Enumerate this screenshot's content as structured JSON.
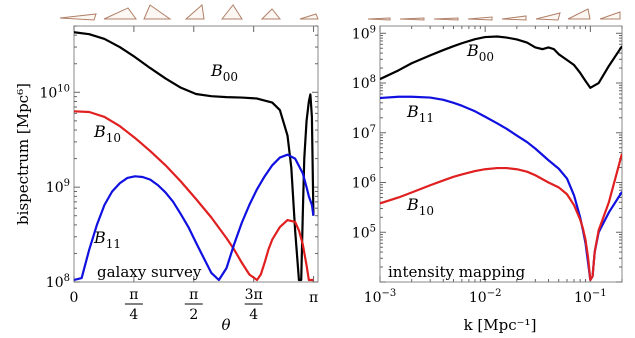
{
  "chart_data": [
    {
      "type": "line",
      "panel": "left",
      "xlabel": "θ",
      "ylabel": "bispectrum [Mpc⁶]",
      "xlim": [
        0,
        3.2
      ],
      "ylim": [
        100000000.0,
        50000000000.0
      ],
      "yscale": "log",
      "x_ticks": [
        {
          "value": 0,
          "text": "0"
        },
        {
          "value": 0.7854,
          "num": "π",
          "den": "4"
        },
        {
          "value": 1.5708,
          "num": "π",
          "den": "2"
        },
        {
          "value": 2.3562,
          "num": "3π",
          "den": "4"
        },
        {
          "value": 3.1416,
          "text": "π"
        }
      ],
      "y_ticks": [
        {
          "value": 100000000.0,
          "base": "10",
          "exp": "8"
        },
        {
          "value": 1000000000.0,
          "base": "10",
          "exp": "9"
        },
        {
          "value": 10000000000.0,
          "base": "10",
          "exp": "10"
        }
      ],
      "annotation": "galaxy survey",
      "series": [
        {
          "name": "B00",
          "label_base": "B",
          "label_sub": "00",
          "color": "#000000",
          "x": [
            0,
            0.2,
            0.4,
            0.6,
            0.8,
            1.0,
            1.2,
            1.4,
            1.6,
            1.8,
            2.0,
            2.2,
            2.4,
            2.6,
            2.7,
            2.8,
            2.85,
            2.9,
            2.95,
            2.98,
            3.0,
            3.02,
            3.05,
            3.08,
            3.1,
            3.12,
            3.14
          ],
          "y": [
            43000000000.0,
            41000000000.0,
            36500000000.0,
            30000000000.0,
            23500000000.0,
            18000000000.0,
            14000000000.0,
            11200000000.0,
            9600000000.0,
            9100000000.0,
            8900000000.0,
            8800000000.0,
            8600000000.0,
            7800000000.0,
            6500000000.0,
            3500000000.0,
            1600000000.0,
            350000000.0,
            105000000.0,
            105000000.0,
            500000000.0,
            2000000000.0,
            5000000000.0,
            8000000000.0,
            9500000000.0,
            5500000000.0,
            500000000.0
          ]
        },
        {
          "name": "B10",
          "label_base": "B",
          "label_sub": "10",
          "color": "#e02020",
          "x": [
            0,
            0.2,
            0.4,
            0.6,
            0.8,
            1.0,
            1.2,
            1.4,
            1.6,
            1.8,
            2.0,
            2.1,
            2.2,
            2.3,
            2.4,
            2.45,
            2.5,
            2.55,
            2.6,
            2.7,
            2.8,
            2.9,
            2.95,
            3.0,
            3.05,
            3.08,
            3.12,
            3.14
          ],
          "y": [
            6300000000.0,
            6200000000.0,
            5500000000.0,
            4400000000.0,
            3300000000.0,
            2400000000.0,
            1700000000.0,
            1150000000.0,
            750000000.0,
            480000000.0,
            290000000.0,
            220000000.0,
            160000000.0,
            120000000.0,
            105000000.0,
            120000000.0,
            160000000.0,
            220000000.0,
            280000000.0,
            380000000.0,
            450000000.0,
            430000000.0,
            350000000.0,
            250000000.0,
            150000000.0,
            105000000.0,
            105000000.0,
            105000000.0
          ]
        },
        {
          "name": "B11",
          "label_base": "B",
          "label_sub": "11",
          "color": "#1010e0",
          "x": [
            0,
            0.1,
            0.2,
            0.3,
            0.4,
            0.5,
            0.6,
            0.7,
            0.8,
            0.9,
            1.0,
            1.1,
            1.2,
            1.3,
            1.4,
            1.5,
            1.6,
            1.7,
            1.8,
            1.9,
            2.0,
            2.1,
            2.2,
            2.3,
            2.4,
            2.5,
            2.6,
            2.7,
            2.8,
            2.9,
            3.0,
            3.05,
            3.08,
            3.12,
            3.14
          ],
          "y": [
            105000000.0,
            110000000.0,
            220000000.0,
            400000000.0,
            650000000.0,
            900000000.0,
            1100000000.0,
            1250000000.0,
            1300000000.0,
            1280000000.0,
            1200000000.0,
            1050000000.0,
            880000000.0,
            700000000.0,
            520000000.0,
            380000000.0,
            260000000.0,
            180000000.0,
            125000000.0,
            105000000.0,
            140000000.0,
            250000000.0,
            420000000.0,
            650000000.0,
            950000000.0,
            1300000000.0,
            1700000000.0,
            2050000000.0,
            2200000000.0,
            2000000000.0,
            1400000000.0,
            1000000000.0,
            800000000.0,
            650000000.0,
            500000000.0
          ]
        }
      ]
    },
    {
      "type": "line",
      "panel": "right",
      "xlabel": "k [Mpc⁻¹]",
      "xscale": "log",
      "yscale": "log",
      "xlim": [
        0.001,
        0.2
      ],
      "ylim": [
        10000.0,
        1400000000.0
      ],
      "x_ticks": [
        {
          "value": 0.001,
          "base": "10",
          "exp": "−3"
        },
        {
          "value": 0.01,
          "base": "10",
          "exp": "−2"
        },
        {
          "value": 0.1,
          "base": "10",
          "exp": "−1"
        }
      ],
      "y_ticks": [
        {
          "value": 100000.0,
          "base": "10",
          "exp": "5"
        },
        {
          "value": 1000000.0,
          "base": "10",
          "exp": "6"
        },
        {
          "value": 10000000.0,
          "base": "10",
          "exp": "7"
        },
        {
          "value": 100000000.0,
          "base": "10",
          "exp": "8"
        },
        {
          "value": 1000000000.0,
          "base": "10",
          "exp": "9"
        }
      ],
      "annotation": "intensity mapping",
      "series": [
        {
          "name": "B00",
          "label_base": "B",
          "label_sub": "00",
          "color": "#000000",
          "x": [
            0.001,
            0.0015,
            0.002,
            0.003,
            0.004,
            0.005,
            0.006,
            0.008,
            0.01,
            0.013,
            0.016,
            0.02,
            0.025,
            0.03,
            0.035,
            0.04,
            0.045,
            0.05,
            0.06,
            0.07,
            0.08,
            0.09,
            0.1,
            0.12,
            0.15,
            0.2
          ],
          "y": [
            120000000.0,
            180000000.0,
            250000000.0,
            360000000.0,
            460000000.0,
            550000000.0,
            630000000.0,
            760000000.0,
            840000000.0,
            860000000.0,
            820000000.0,
            750000000.0,
            650000000.0,
            520000000.0,
            480000000.0,
            520000000.0,
            480000000.0,
            380000000.0,
            290000000.0,
            230000000.0,
            160000000.0,
            110000000.0,
            80000000.0,
            100000000.0,
            220000000.0,
            550000000.0
          ]
        },
        {
          "name": "B11",
          "label_base": "B",
          "label_sub": "11",
          "color": "#1010e0",
          "x": [
            0.001,
            0.0015,
            0.002,
            0.003,
            0.004,
            0.005,
            0.006,
            0.008,
            0.01,
            0.013,
            0.016,
            0.02,
            0.025,
            0.03,
            0.04,
            0.05,
            0.06,
            0.07,
            0.08,
            0.085,
            0.09,
            0.095,
            0.1,
            0.105,
            0.11,
            0.12,
            0.15,
            0.2
          ],
          "y": [
            50000000.0,
            53000000.0,
            53000000.0,
            51000000.0,
            46000000.0,
            40000000.0,
            35000000.0,
            27000000.0,
            21000000.0,
            15500000.0,
            12000000.0,
            8800000.0,
            6500000.0,
            4800000.0,
            2800000.0,
            1900000.0,
            1200000.0,
            550000.0,
            200000.0,
            110000.0,
            60000.0,
            25000.0,
            11000.0,
            13000.0,
            40000.0,
            100000.0,
            250000.0,
            650000.0
          ]
        },
        {
          "name": "B10",
          "label_base": "B",
          "label_sub": "10",
          "color": "#e02020",
          "x": [
            0.001,
            0.0015,
            0.002,
            0.003,
            0.004,
            0.005,
            0.006,
            0.008,
            0.01,
            0.013,
            0.016,
            0.02,
            0.025,
            0.03,
            0.04,
            0.05,
            0.06,
            0.07,
            0.08,
            0.085,
            0.09,
            0.095,
            0.1,
            0.105,
            0.11,
            0.12,
            0.15,
            0.2
          ],
          "y": [
            380000.0,
            500000.0,
            630000.0,
            880000.0,
            1100000.0,
            1300000.0,
            1450000.0,
            1700000.0,
            1850000.0,
            1950000.0,
            1950000.0,
            1850000.0,
            1650000.0,
            1400000.0,
            1000000.0,
            800000.0,
            580000.0,
            350000.0,
            180000.0,
            120000.0,
            70000.0,
            32000.0,
            11000.0,
            13000.0,
            40000.0,
            110000.0,
            400000.0,
            3800000.0
          ]
        }
      ]
    }
  ]
}
